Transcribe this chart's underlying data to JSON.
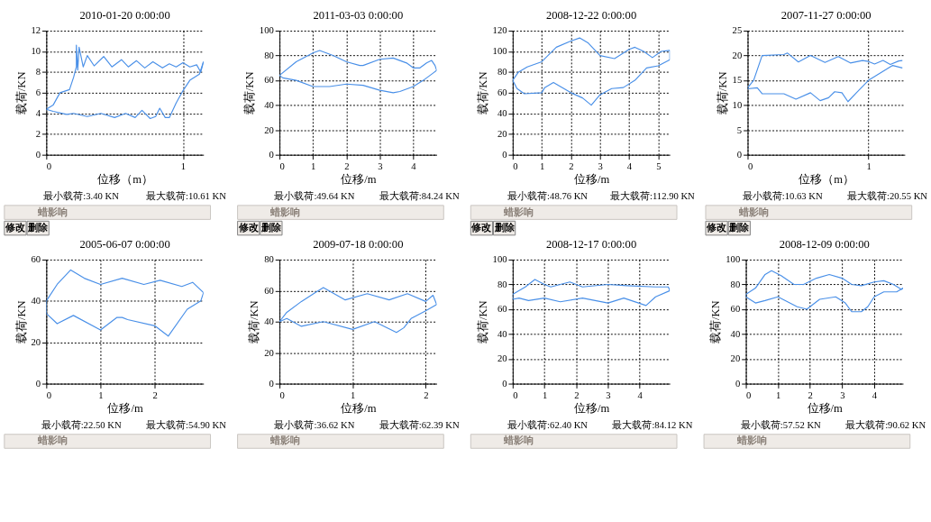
{
  "chart_data": [
    {
      "type": "line",
      "title": "2010-01-20  0:00:00",
      "xlabel": "位移（m）",
      "ylabel": "载荷/KN",
      "xlim": [
        0,
        1.15
      ],
      "xticks": [
        0,
        1
      ],
      "ylim": [
        0,
        12
      ],
      "yticks": [
        0,
        2,
        4,
        6,
        8,
        10,
        12
      ],
      "grid": true,
      "series": [
        {
          "color": "#4a90e8",
          "x": [
            0,
            0.05,
            0.1,
            0.17,
            0.2,
            0.22,
            0.22,
            0.23,
            0.24,
            0.27,
            0.3,
            0.35,
            0.42,
            0.48,
            0.55,
            0.6,
            0.66,
            0.72,
            0.78,
            0.85,
            0.9,
            0.95,
            1.0,
            1.05,
            1.1,
            1.13,
            1.15
          ],
          "values": [
            4.4,
            4.8,
            6,
            6.3,
            7.5,
            8.5,
            10.6,
            8.2,
            10.4,
            8.5,
            9.6,
            8.6,
            9.5,
            8.5,
            9.2,
            8.5,
            9.1,
            8.4,
            9.0,
            8.4,
            8.8,
            8.5,
            8.9,
            8.5,
            8.7,
            8.0,
            9.0
          ]
        },
        {
          "color": "#4a90e8",
          "x": [
            0,
            0.05,
            0.15,
            0.2,
            0.3,
            0.4,
            0.5,
            0.58,
            0.65,
            0.7,
            0.76,
            0.8,
            0.83,
            0.87,
            0.9,
            0.95,
            1.0,
            1.05,
            1.12,
            1.15
          ],
          "values": [
            4.4,
            4.2,
            3.9,
            4.0,
            3.7,
            4.0,
            3.6,
            4.0,
            3.6,
            4.3,
            3.5,
            3.7,
            4.5,
            3.6,
            3.6,
            5,
            6.2,
            7.2,
            7.8,
            9.0
          ]
        }
      ],
      "annotations": [
        "最小载荷:3.40 KN",
        "最大载荷:10.61 KN",
        "蜡影响",
        "修改",
        "删除"
      ]
    },
    {
      "type": "line",
      "title": "2011-03-03  0:00:00",
      "xlabel": "位移/m",
      "ylabel": "载荷/KN",
      "xlim": [
        0,
        4.7
      ],
      "xticks": [
        0,
        1,
        2,
        3,
        4
      ],
      "ylim": [
        0,
        100
      ],
      "yticks": [
        0,
        20,
        40,
        60,
        80,
        100
      ],
      "grid": true,
      "series": [
        {
          "color": "#4a90e8",
          "x": [
            0,
            0.5,
            1,
            1.2,
            1.6,
            2,
            2.4,
            2.5,
            3,
            3.4,
            3.8,
            4,
            4.2,
            4.4,
            4.55,
            4.65,
            4.7
          ],
          "values": [
            64,
            75,
            82,
            84,
            80,
            75,
            72,
            72,
            77,
            78,
            74,
            70,
            70,
            74,
            76,
            72,
            68
          ]
        },
        {
          "color": "#4a90e8",
          "x": [
            0,
            0.1,
            0.5,
            1,
            1.5,
            2,
            2.5,
            3,
            3.4,
            3.6,
            4,
            4.3,
            4.6,
            4.7
          ],
          "values": [
            64,
            62,
            60,
            55,
            55,
            57,
            56,
            52,
            50,
            51,
            55,
            60,
            66,
            68
          ]
        }
      ],
      "annotations": [
        "最小载荷:49.64 KN",
        "最大载荷:84.24 KN",
        "蜡影响",
        "修改",
        "删除"
      ]
    },
    {
      "type": "line",
      "title": "2008-12-22  0:00:00",
      "xlabel": "位移/m",
      "ylabel": "载荷/KN",
      "xlim": [
        0,
        5.4
      ],
      "xticks": [
        0,
        1,
        2,
        3,
        4,
        5
      ],
      "ylim": [
        0,
        120
      ],
      "yticks": [
        0,
        20,
        40,
        60,
        80,
        100,
        120
      ],
      "grid": true,
      "series": [
        {
          "color": "#4a90e8",
          "x": [
            0,
            0.2,
            0.5,
            1,
            1.5,
            2,
            2.3,
            2.6,
            3,
            3.5,
            4,
            4.2,
            4.5,
            4.8,
            5.1,
            5.4
          ],
          "values": [
            72,
            80,
            85,
            90,
            104,
            110,
            113,
            108,
            96,
            93,
            102,
            104,
            100,
            94,
            100,
            101
          ]
        },
        {
          "color": "#4a90e8",
          "x": [
            0,
            0.15,
            0.4,
            1,
            1.1,
            1.4,
            2,
            2.4,
            2.7,
            3,
            3.4,
            3.8,
            4.2,
            4.6,
            5,
            5.4,
            5.4
          ],
          "values": [
            72,
            64,
            59,
            60,
            65,
            70,
            60,
            55,
            48,
            58,
            64,
            65,
            72,
            84,
            86,
            92,
            101
          ]
        }
      ],
      "annotations": [
        "最小载荷:48.76 KN",
        "最大载荷:112.90 KN",
        "蜡影响",
        "修改",
        "删除"
      ]
    },
    {
      "type": "line",
      "title": "2007-11-27  0:00:00",
      "xlabel": "位移（m）",
      "ylabel": "载荷/KN",
      "xlim": [
        0,
        1.3
      ],
      "xticks": [
        0,
        1
      ],
      "ylim": [
        0,
        25
      ],
      "yticks": [
        0,
        5,
        10,
        15,
        20,
        25
      ],
      "grid": true,
      "series": [
        {
          "color": "#4a90e8",
          "x": [
            0,
            0.05,
            0.12,
            0.3,
            0.33,
            0.42,
            0.52,
            0.64,
            0.75,
            0.85,
            0.95,
            1.0,
            1.05,
            1.12,
            1.18,
            1.25,
            1.28
          ],
          "values": [
            13.5,
            15,
            20,
            20.2,
            20.5,
            18.7,
            20,
            18.6,
            19.8,
            18.5,
            19,
            18.8,
            18.3,
            19,
            18.2,
            18.9,
            19.0
          ]
        },
        {
          "color": "#4a90e8",
          "x": [
            0,
            0.08,
            0.12,
            0.3,
            0.4,
            0.52,
            0.6,
            0.67,
            0.72,
            0.78,
            0.83,
            0.9,
            1.0,
            1.1,
            1.2,
            1.28
          ],
          "values": [
            13.3,
            13.5,
            12.3,
            12.3,
            11.2,
            12.5,
            10.9,
            11.5,
            12.7,
            12.5,
            10.7,
            12.5,
            15,
            16.5,
            18,
            17.5
          ]
        }
      ],
      "annotations": [
        "最小载荷:10.63 KN",
        "最大载荷:20.55 KN",
        "蜡影响",
        "修改",
        "删除"
      ]
    },
    {
      "type": "line",
      "title": "2005-06-07  0:00:00",
      "xlabel": "位移/m",
      "ylabel": "载荷/KN",
      "xlim": [
        0,
        2.9
      ],
      "xticks": [
        0,
        1,
        2
      ],
      "ylim": [
        0,
        60
      ],
      "yticks": [
        0,
        20,
        40,
        60
      ],
      "grid": true,
      "series": [
        {
          "color": "#4a90e8",
          "x": [
            0,
            0.2,
            0.45,
            0.7,
            1,
            1.4,
            1.8,
            2.1,
            2.5,
            2.7,
            2.9
          ],
          "values": [
            40,
            48,
            55,
            51,
            48,
            51,
            48,
            50,
            47,
            49,
            44
          ]
        },
        {
          "color": "#4a90e8",
          "x": [
            0,
            0,
            0.2,
            0.5,
            1,
            1.3,
            1.4,
            1.5,
            2,
            2.25,
            2.6,
            2.85,
            2.9
          ],
          "values": [
            40,
            34,
            29,
            33,
            26,
            32,
            32,
            31,
            28,
            23,
            36,
            40,
            44
          ]
        }
      ],
      "annotations": [
        "最小载荷:22.50 KN",
        "最大载荷:54.90 KN",
        "蜡影响"
      ]
    },
    {
      "type": "line",
      "title": "2009-07-18  0:00:00",
      "xlabel": "位移/m",
      "ylabel": "载荷/KN",
      "xlim": [
        0,
        2.15
      ],
      "xticks": [
        0,
        1,
        2
      ],
      "ylim": [
        0,
        80
      ],
      "yticks": [
        0,
        20,
        40,
        60,
        80
      ],
      "grid": true,
      "series": [
        {
          "color": "#4a90e8",
          "x": [
            0,
            0.1,
            0.3,
            0.5,
            0.6,
            0.9,
            1.2,
            1.5,
            1.75,
            2,
            2.1,
            2.15
          ],
          "values": [
            40,
            46,
            53,
            59,
            62,
            54,
            58,
            54,
            58,
            53,
            57,
            51
          ]
        },
        {
          "color": "#4a90e8",
          "x": [
            0,
            0.1,
            0.3,
            0.6,
            1.0,
            1.3,
            1.6,
            1.7,
            1.8,
            2,
            2.15
          ],
          "values": [
            40,
            42,
            37,
            40,
            35,
            40,
            33,
            36,
            42,
            47,
            51
          ]
        }
      ],
      "annotations": [
        "最小载荷:36.62 KN",
        "最大载荷:62.39 KN",
        "蜡影响"
      ]
    },
    {
      "type": "line",
      "title": "2008-12-17  0:00:00",
      "xlabel": "位移/m",
      "ylabel": "载荷/KN",
      "xlim": [
        0,
        4.95
      ],
      "xticks": [
        0,
        1,
        2,
        3,
        4
      ],
      "ylim": [
        0,
        100
      ],
      "yticks": [
        0,
        20,
        40,
        60,
        80,
        100
      ],
      "grid": true,
      "series": [
        {
          "color": "#4a90e8",
          "x": [
            0,
            0.4,
            0.7,
            1,
            1.2,
            1.8,
            2.2,
            3,
            3.6,
            4.5,
            4.9,
            4.95
          ],
          "values": [
            72,
            78,
            84,
            80,
            78,
            82,
            78,
            80,
            79,
            78,
            78,
            75
          ]
        },
        {
          "color": "#4a90e8",
          "x": [
            0,
            0,
            0.2,
            0.5,
            1,
            1.5,
            2.2,
            3,
            3.5,
            4.2,
            4.5,
            4.95
          ],
          "values": [
            72,
            68,
            69,
            67,
            69,
            66,
            69,
            65,
            69,
            63,
            70,
            75
          ]
        }
      ],
      "annotations": [
        "最小载荷:62.40 KN",
        "最大载荷:84.12 KN",
        "蜡影响"
      ]
    },
    {
      "type": "line",
      "title": "2008-12-09  0:00:00",
      "xlabel": "位移/m",
      "ylabel": "载荷/KN",
      "xlim": [
        0,
        4.9
      ],
      "xticks": [
        0,
        1,
        2,
        3,
        4
      ],
      "ylim": [
        0,
        100
      ],
      "yticks": [
        0,
        20,
        40,
        60,
        80,
        100
      ],
      "grid": true,
      "series": [
        {
          "color": "#4a90e8",
          "x": [
            0,
            0.3,
            0.6,
            0.8,
            1.1,
            1.5,
            1.8,
            2.2,
            2.6,
            3,
            3.3,
            3.6,
            4,
            4.3,
            4.6,
            4.85,
            4.9
          ],
          "values": [
            72,
            77,
            88,
            91,
            87,
            80,
            80,
            85,
            88,
            85,
            80,
            79,
            82,
            83,
            80,
            76,
            77
          ]
        },
        {
          "color": "#4a90e8",
          "x": [
            0,
            0,
            0.3,
            0.6,
            1.0,
            1.6,
            1.9,
            2.3,
            2.8,
            3.1,
            3.3,
            3.6,
            3.8,
            4.0,
            4.3,
            4.7,
            4.9
          ],
          "values": [
            72,
            70,
            65,
            67,
            70,
            62,
            60,
            68,
            70,
            65,
            58,
            58,
            62,
            70,
            74,
            74,
            77
          ]
        }
      ],
      "annotations": [
        "最小载荷:57.52 KN",
        "最大载荷:90.62 KN",
        "蜡影响"
      ]
    }
  ]
}
